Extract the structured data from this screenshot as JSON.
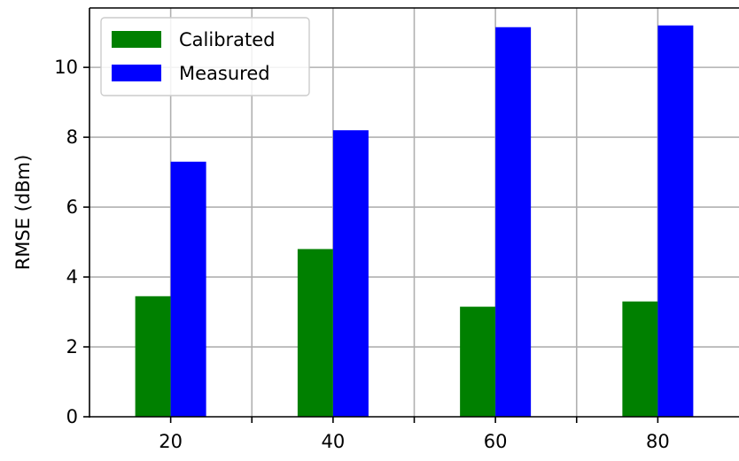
{
  "chart_data": {
    "type": "bar",
    "categories": [
      "20",
      "40",
      "60",
      "80"
    ],
    "series": [
      {
        "name": "Calibrated",
        "color": "#008000",
        "values": [
          3.45,
          4.8,
          3.15,
          3.3
        ]
      },
      {
        "name": "Measured",
        "color": "#0000ff",
        "values": [
          7.3,
          8.2,
          11.15,
          11.2
        ]
      }
    ],
    "title": "",
    "xlabel": "",
    "ylabel": "RMSE (dBm)",
    "ylim": [
      0,
      11.7
    ],
    "yticks": [
      "0",
      "2",
      "4",
      "6",
      "8",
      "10"
    ],
    "xlim": [
      10,
      90
    ],
    "grid": true,
    "legend_position": "top-left"
  }
}
